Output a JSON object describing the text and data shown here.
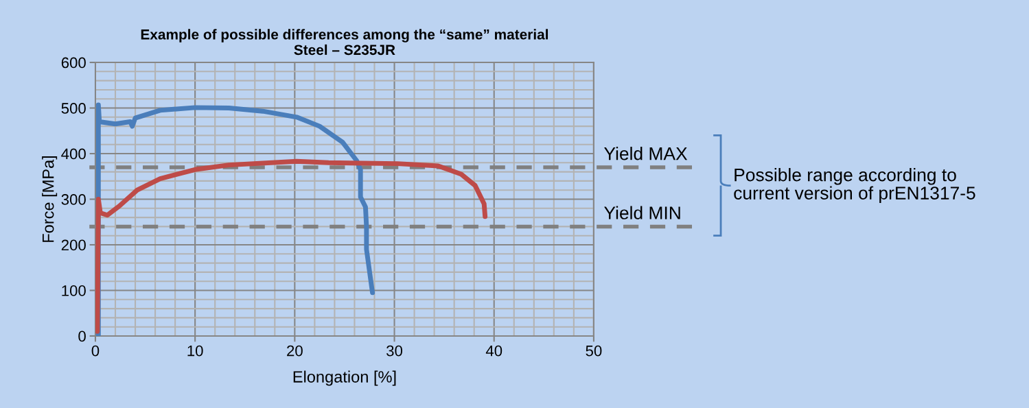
{
  "chart_data": {
    "type": "line",
    "title": "Example of possible differences among the “same” material\nSteel – S235JR",
    "xlabel": "Elongation [%]",
    "ylabel": "Force [MPa]",
    "xlim": [
      0,
      50
    ],
    "xticks": [
      0,
      10,
      20,
      30,
      40,
      50
    ],
    "ylim": [
      0,
      600
    ],
    "yticks": [
      0,
      100,
      200,
      300,
      400,
      500,
      600
    ],
    "grid": true,
    "legend": false,
    "marker": "none",
    "line_style": "solid",
    "series": [
      {
        "color": "#4a7ebb",
        "x": [
          0.3,
          0.3,
          0.3,
          0.4,
          1.0,
          2.0,
          3.5,
          3.7,
          4.0,
          6.5,
          10,
          13.4,
          16.8,
          20.2,
          22.5,
          24.8,
          26.2,
          26.6,
          26.6,
          27.1,
          27.2,
          27.2,
          27.8
        ],
        "values": [
          0,
          300,
          507,
          470,
          468,
          465,
          470,
          460,
          478,
          495,
          501,
          500,
          493,
          480,
          460,
          425,
          385,
          365,
          305,
          283,
          240,
          190,
          95
        ]
      },
      {
        "color": "#be4b48",
        "x": [
          0.2,
          0.3,
          0.5,
          1.2,
          2.4,
          4.2,
          6.5,
          10,
          13.4,
          20.2,
          23.4,
          30.3,
          34.4,
          36.7,
          38.1,
          39.0,
          39.1
        ],
        "values": [
          10,
          300,
          270,
          265,
          285,
          320,
          345,
          365,
          375,
          383,
          380,
          378,
          373,
          355,
          330,
          290,
          262
        ]
      }
    ],
    "ref_lines": [
      {
        "axis": "y",
        "value": 370,
        "label": "Yield MAX",
        "color": "#808080",
        "line_style": "dashed"
      },
      {
        "axis": "y",
        "value": 240,
        "label": "Yield MIN",
        "color": "#808080",
        "line_style": "dashed"
      }
    ],
    "annotations": [
      "Possible range according to\ncurrent version of prEN1317-5"
    ]
  }
}
